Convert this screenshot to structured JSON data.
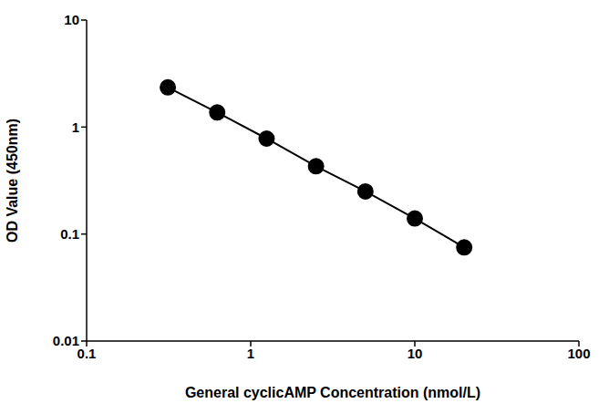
{
  "chart_data": {
    "type": "line",
    "x_label": "General cyclicAMP Concentration (nmol/L)",
    "y_label": "OD Value (450nm)",
    "x": [
      0.3125,
      0.625,
      1.25,
      2.5,
      5,
      10,
      20
    ],
    "series": [
      {
        "name": "cyclicAMP",
        "color": "#000000",
        "values": [
          2.35,
          1.37,
          0.78,
          0.43,
          0.25,
          0.14,
          0.075
        ],
        "marker": "circle",
        "line_style": "solid"
      }
    ],
    "xlim": [
      0.1,
      100
    ],
    "ylim": [
      0.01,
      10
    ],
    "xticks": [
      0.1,
      1,
      10,
      100
    ],
    "yticks": [
      0.01,
      0.1,
      1,
      10
    ],
    "log": true,
    "grid": false
  }
}
